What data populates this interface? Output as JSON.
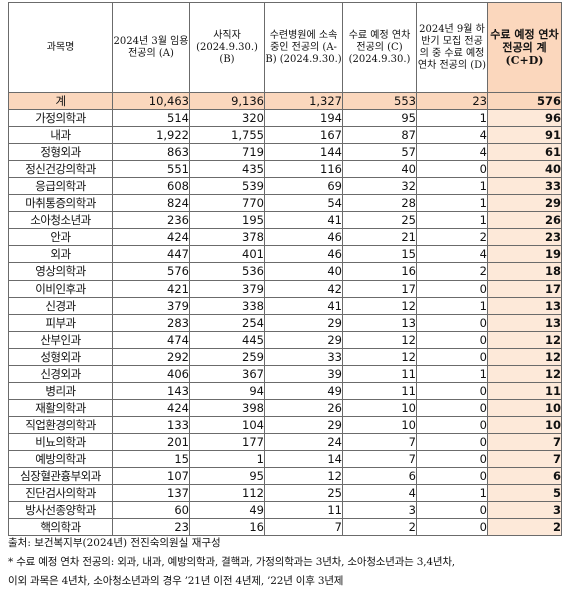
{
  "headers": [
    "과목명",
    "2024년 3월 임용 전공의 (A)",
    "사직자 (2024.9.30.) (B)",
    "수련병원에 소속 중인 전공의 (A-B) (2024.9.30.)",
    "수료 예정 연차 전공의 (C) (2024.9.30.)",
    "2024년 9월 하반기 모집 전공의 중 수료 예정 연차 전공의 (D)",
    "수료 예정 연차 전공의 계 (C+D)"
  ],
  "rows": [
    {
      "name": "계",
      "a": "10,463",
      "b": "9,136",
      "ab": "1,327",
      "c": "553",
      "d": "23",
      "cd": "576"
    },
    {
      "name": "가정의학과",
      "a": "514",
      "b": "320",
      "ab": "194",
      "c": "95",
      "d": "1",
      "cd": "96"
    },
    {
      "name": "내과",
      "a": "1,922",
      "b": "1,755",
      "ab": "167",
      "c": "87",
      "d": "4",
      "cd": "91"
    },
    {
      "name": "정형외과",
      "a": "863",
      "b": "719",
      "ab": "144",
      "c": "57",
      "d": "4",
      "cd": "61"
    },
    {
      "name": "정신건강의학과",
      "a": "551",
      "b": "435",
      "ab": "116",
      "c": "40",
      "d": "0",
      "cd": "40"
    },
    {
      "name": "응급의학과",
      "a": "608",
      "b": "539",
      "ab": "69",
      "c": "32",
      "d": "1",
      "cd": "33"
    },
    {
      "name": "마취통증의학과",
      "a": "824",
      "b": "770",
      "ab": "54",
      "c": "28",
      "d": "1",
      "cd": "29"
    },
    {
      "name": "소아청소년과",
      "a": "236",
      "b": "195",
      "ab": "41",
      "c": "25",
      "d": "1",
      "cd": "26"
    },
    {
      "name": "안과",
      "a": "424",
      "b": "378",
      "ab": "46",
      "c": "21",
      "d": "2",
      "cd": "23"
    },
    {
      "name": "외과",
      "a": "447",
      "b": "401",
      "ab": "46",
      "c": "15",
      "d": "4",
      "cd": "19"
    },
    {
      "name": "영상의학과",
      "a": "576",
      "b": "536",
      "ab": "40",
      "c": "16",
      "d": "2",
      "cd": "18"
    },
    {
      "name": "이비인후과",
      "a": "421",
      "b": "379",
      "ab": "42",
      "c": "17",
      "d": "0",
      "cd": "17"
    },
    {
      "name": "신경과",
      "a": "379",
      "b": "338",
      "ab": "41",
      "c": "12",
      "d": "1",
      "cd": "13"
    },
    {
      "name": "피부과",
      "a": "283",
      "b": "254",
      "ab": "29",
      "c": "13",
      "d": "0",
      "cd": "13"
    },
    {
      "name": "산부인과",
      "a": "474",
      "b": "445",
      "ab": "29",
      "c": "12",
      "d": "0",
      "cd": "12"
    },
    {
      "name": "성형외과",
      "a": "292",
      "b": "259",
      "ab": "33",
      "c": "12",
      "d": "0",
      "cd": "12"
    },
    {
      "name": "신경외과",
      "a": "406",
      "b": "367",
      "ab": "39",
      "c": "11",
      "d": "1",
      "cd": "12"
    },
    {
      "name": "병리과",
      "a": "143",
      "b": "94",
      "ab": "49",
      "c": "11",
      "d": "0",
      "cd": "11"
    },
    {
      "name": "재활의학과",
      "a": "424",
      "b": "398",
      "ab": "26",
      "c": "10",
      "d": "0",
      "cd": "10"
    },
    {
      "name": "직업환경의학과",
      "a": "133",
      "b": "104",
      "ab": "29",
      "c": "10",
      "d": "0",
      "cd": "10"
    },
    {
      "name": "비뇨의학과",
      "a": "201",
      "b": "177",
      "ab": "24",
      "c": "7",
      "d": "0",
      "cd": "7"
    },
    {
      "name": "예방의학과",
      "a": "15",
      "b": "1",
      "ab": "14",
      "c": "7",
      "d": "0",
      "cd": "7"
    },
    {
      "name": "심장혈관흉부외과",
      "a": "107",
      "b": "95",
      "ab": "12",
      "c": "6",
      "d": "0",
      "cd": "6"
    },
    {
      "name": "진단검사의학과",
      "a": "137",
      "b": "112",
      "ab": "25",
      "c": "4",
      "d": "1",
      "cd": "5"
    },
    {
      "name": "방사선종양학과",
      "a": "60",
      "b": "49",
      "ab": "11",
      "c": "3",
      "d": "0",
      "cd": "3"
    },
    {
      "name": "핵의학과",
      "a": "23",
      "b": "16",
      "ab": "7",
      "c": "2",
      "d": "0",
      "cd": "2"
    }
  ],
  "source": "출처: 보건복지부(2024년) 전진숙의원실 재구성",
  "note_line1": "* 수료 예정 연차 전공의: 외과, 내과, 예방의학과, 결핵과, 가정의학과는 3년차, 소아청소년과는 3,4년차,",
  "note_line2": "이외 과목은 4년차, 소아청소년과의 경우 ’21년 이전 4년제, ’22년 이후 3년제",
  "colors": {
    "header_highlight": "#fbd7bd",
    "column_highlight": "#fde9d9",
    "border": "#6b6b6b"
  }
}
